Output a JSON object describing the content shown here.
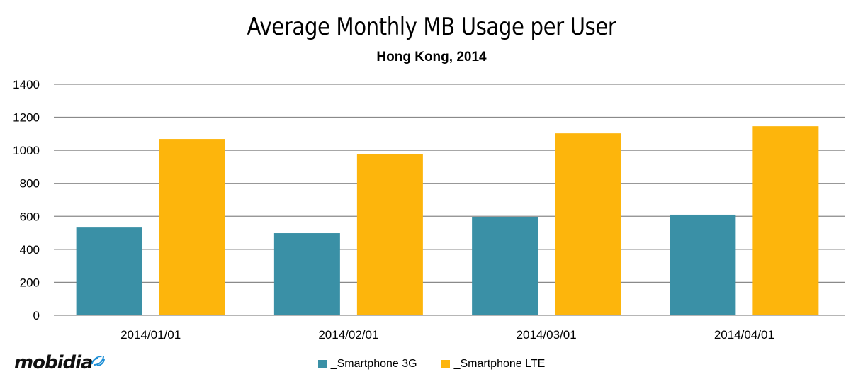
{
  "chart_data": {
    "type": "bar",
    "title": "Average Monthly MB Usage per User",
    "subtitle": "Hong Kong, 2014",
    "xlabel": "",
    "ylabel": "",
    "categories": [
      "2014/01/01",
      "2014/02/01",
      "2014/03/01",
      "2014/04/01"
    ],
    "series": [
      {
        "name": "_Smartphone 3G",
        "color": "#3A90A6",
        "values": [
          532,
          498,
          597,
          610
        ]
      },
      {
        "name": "_Smartphone LTE",
        "color": "#FDB50C",
        "values": [
          1069,
          979,
          1103,
          1146
        ]
      }
    ],
    "ylim": [
      0,
      1400
    ],
    "yticks": [
      0,
      200,
      400,
      600,
      800,
      1000,
      1200,
      1400
    ],
    "grid": true,
    "legend_position": "bottom"
  },
  "branding": {
    "logo_text": "mobidia",
    "logo_icon": "signal-waves-icon",
    "logo_accent": "#1E8FD6"
  }
}
